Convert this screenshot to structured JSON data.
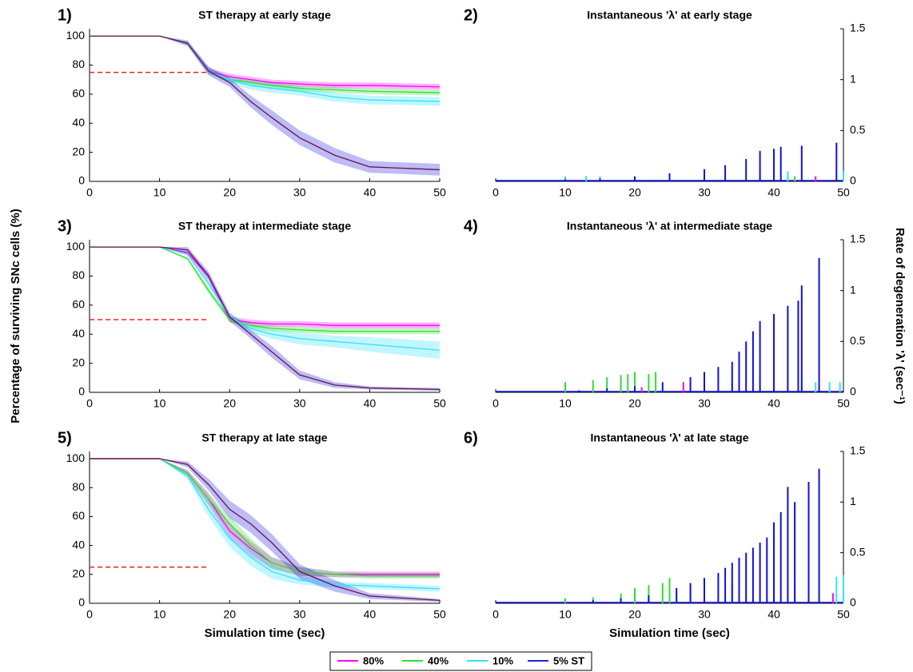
{
  "chart_data": [
    {
      "type": "band-line",
      "label": "1)",
      "title": "ST therapy at early stage",
      "reference": 75,
      "reference_color": "#ee2222",
      "x": [
        0,
        10,
        14,
        17,
        20,
        23,
        26,
        30,
        35,
        40,
        50
      ],
      "xlim": [
        0,
        50
      ],
      "xticks": [
        0,
        10,
        20,
        30,
        40,
        50
      ],
      "ylim": [
        0,
        105
      ],
      "yticks": [
        0,
        20,
        40,
        60,
        80,
        100
      ],
      "series": [
        {
          "name": "80%",
          "color": "#ff00ff",
          "values": [
            100,
            100,
            95,
            76,
            72,
            70,
            68,
            67,
            66,
            66,
            65
          ],
          "error": [
            0,
            0,
            1,
            2,
            2,
            2,
            2,
            2,
            2,
            2,
            2
          ]
        },
        {
          "name": "40%",
          "color": "#33dd33",
          "values": [
            100,
            100,
            95,
            76,
            70,
            68,
            66,
            64,
            63,
            62,
            61
          ],
          "error": [
            0,
            0,
            1,
            2,
            2,
            2,
            2,
            2,
            2,
            2,
            2
          ]
        },
        {
          "name": "10%",
          "color": "#33e0ff",
          "values": [
            100,
            100,
            95,
            76,
            70,
            66,
            64,
            62,
            58,
            56,
            55
          ],
          "error": [
            0,
            0,
            1,
            2,
            2,
            3,
            3,
            3,
            3,
            3,
            3
          ]
        },
        {
          "name": "5% ST",
          "color": "#2020e0",
          "line_color": "#70104a",
          "values": [
            100,
            100,
            95,
            76,
            68,
            55,
            44,
            30,
            18,
            10,
            8
          ],
          "error": [
            0,
            0,
            2,
            3,
            3,
            4,
            5,
            5,
            5,
            4,
            4
          ]
        }
      ]
    },
    {
      "type": "spike",
      "label": "2)",
      "title": "Instantaneous 'λ' at early stage",
      "axis_side": "right",
      "xlim": [
        0,
        50
      ],
      "xticks": [
        0,
        10,
        20,
        30,
        40,
        50
      ],
      "ylim": [
        0,
        1.5
      ],
      "yticks": [
        0,
        0.5,
        1,
        1.5
      ],
      "series": [
        {
          "name": "80%",
          "color": "#ff00ff",
          "x": [
            13,
            40,
            46
          ],
          "values": [
            0.05,
            0.05,
            0.05
          ]
        },
        {
          "name": "40%",
          "color": "#33dd33",
          "x": [
            40,
            42,
            43
          ],
          "values": [
            0.05,
            0.06,
            0.05
          ]
        },
        {
          "name": "10%",
          "color": "#33e0ff",
          "x": [
            10,
            13,
            15,
            38,
            42,
            50
          ],
          "values": [
            0.05,
            0.05,
            0.05,
            0.1,
            0.1,
            0.1
          ]
        },
        {
          "name": "5% ST",
          "color": "#1010e0",
          "x": [
            10,
            15,
            20,
            25,
            30,
            33,
            36,
            38,
            40,
            41,
            44,
            49
          ],
          "values": [
            0.02,
            0.03,
            0.05,
            0.08,
            0.12,
            0.16,
            0.22,
            0.3,
            0.32,
            0.34,
            0.35,
            0.38
          ]
        }
      ]
    },
    {
      "type": "band-line",
      "label": "3)",
      "title": "ST therapy at intermediate stage",
      "ylabel": "Percentage of surviving SNc cells (%)",
      "reference": 50,
      "reference_color": "#ee2222",
      "x": [
        0,
        10,
        14,
        17,
        20,
        23,
        26,
        30,
        35,
        40,
        50
      ],
      "xlim": [
        0,
        50
      ],
      "xticks": [
        0,
        10,
        20,
        30,
        40,
        50
      ],
      "ylim": [
        0,
        105
      ],
      "yticks": [
        0,
        20,
        40,
        60,
        80,
        100
      ],
      "series": [
        {
          "name": "80%",
          "color": "#ff00ff",
          "values": [
            100,
            100,
            96,
            80,
            50,
            48,
            47,
            47,
            46,
            46,
            46
          ],
          "error": [
            0,
            0,
            1,
            2,
            2,
            2,
            2,
            2,
            2,
            2,
            2
          ]
        },
        {
          "name": "40%",
          "color": "#33dd33",
          "values": [
            100,
            100,
            92,
            70,
            50,
            46,
            44,
            43,
            42,
            42,
            42
          ],
          "error": [
            0,
            0,
            1,
            2,
            2,
            2,
            2,
            2,
            2,
            2,
            2
          ]
        },
        {
          "name": "10%",
          "color": "#33e0ff",
          "values": [
            100,
            100,
            95,
            75,
            52,
            44,
            40,
            37,
            35,
            33,
            29
          ],
          "error": [
            0,
            0,
            1,
            2,
            2,
            3,
            3,
            4,
            4,
            5,
            6
          ]
        },
        {
          "name": "5% ST",
          "color": "#2020e0",
          "line_color": "#70104a",
          "values": [
            100,
            100,
            98,
            80,
            52,
            40,
            28,
            12,
            5,
            3,
            2
          ],
          "error": [
            0,
            0,
            2,
            3,
            3,
            3,
            4,
            3,
            2,
            1,
            1
          ]
        }
      ]
    },
    {
      "type": "spike",
      "label": "4)",
      "title": "Instantaneous 'λ' at intermediate stage",
      "ylabel": "Rate of degeneration 'λ' (sec⁻¹)",
      "axis_side": "right",
      "xlim": [
        0,
        50
      ],
      "xticks": [
        0,
        10,
        20,
        30,
        40,
        50
      ],
      "ylim": [
        0,
        1.5
      ],
      "yticks": [
        0,
        0.5,
        1,
        1.5
      ],
      "series": [
        {
          "name": "80%",
          "color": "#ff00ff",
          "x": [
            20,
            21,
            27
          ],
          "values": [
            0.05,
            0.05,
            0.1
          ]
        },
        {
          "name": "40%",
          "color": "#33dd33",
          "x": [
            10,
            14,
            16,
            18,
            19,
            20,
            22,
            23
          ],
          "values": [
            0.1,
            0.12,
            0.15,
            0.17,
            0.18,
            0.2,
            0.18,
            0.2
          ]
        },
        {
          "name": "10%",
          "color": "#33e0ff",
          "x": [
            34,
            38,
            44,
            46,
            48,
            49.5
          ],
          "values": [
            0.1,
            0.1,
            0.1,
            0.1,
            0.1,
            0.1
          ]
        },
        {
          "name": "5% ST",
          "color": "#1010e0",
          "x": [
            12,
            16,
            20,
            24,
            28,
            30,
            32,
            34,
            35,
            36,
            37,
            38,
            40,
            42,
            43.5,
            44,
            46.5
          ],
          "values": [
            0.02,
            0.04,
            0.06,
            0.1,
            0.15,
            0.2,
            0.25,
            0.3,
            0.4,
            0.5,
            0.6,
            0.7,
            0.77,
            0.85,
            0.9,
            1.05,
            1.32
          ]
        }
      ]
    },
    {
      "type": "band-line",
      "label": "5)",
      "title": "ST therapy at late stage",
      "xlabel": "Simulation time (sec)",
      "reference": 25,
      "reference_color": "#ee2222",
      "x": [
        0,
        10,
        14,
        17,
        20,
        23,
        26,
        30,
        35,
        40,
        50
      ],
      "xlim": [
        0,
        50
      ],
      "xticks": [
        0,
        10,
        20,
        30,
        40,
        50
      ],
      "ylim": [
        0,
        105
      ],
      "yticks": [
        0,
        20,
        40,
        60,
        80,
        100
      ],
      "series": [
        {
          "name": "80%",
          "color": "#ff00ff",
          "values": [
            100,
            100,
            90,
            72,
            50,
            38,
            28,
            22,
            20,
            20,
            20
          ],
          "error": [
            0,
            0,
            2,
            4,
            5,
            5,
            4,
            3,
            2,
            2,
            2
          ]
        },
        {
          "name": "40%",
          "color": "#33dd33",
          "values": [
            100,
            100,
            90,
            72,
            55,
            40,
            28,
            22,
            20,
            19,
            19
          ],
          "error": [
            0,
            0,
            2,
            4,
            5,
            5,
            4,
            3,
            2,
            2,
            2
          ]
        },
        {
          "name": "10%",
          "color": "#33e0ff",
          "values": [
            100,
            100,
            88,
            65,
            45,
            32,
            22,
            16,
            13,
            12,
            10
          ],
          "error": [
            0,
            0,
            2,
            5,
            6,
            6,
            5,
            3,
            2,
            2,
            2
          ]
        },
        {
          "name": "5% ST",
          "color": "#2020e0",
          "line_color": "#70104a",
          "values": [
            100,
            100,
            96,
            82,
            65,
            55,
            42,
            22,
            12,
            5,
            2
          ],
          "error": [
            0,
            0,
            2,
            4,
            6,
            6,
            6,
            5,
            4,
            2,
            1
          ]
        }
      ]
    },
    {
      "type": "spike",
      "label": "6)",
      "title": "Instantaneous 'λ' at late stage",
      "xlabel": "Simulation time (sec)",
      "axis_side": "right",
      "xlim": [
        0,
        50
      ],
      "xticks": [
        0,
        10,
        20,
        30,
        40,
        50
      ],
      "ylim": [
        0,
        1.5
      ],
      "yticks": [
        0,
        0.5,
        1,
        1.5
      ],
      "series": [
        {
          "name": "80%",
          "color": "#ff00ff",
          "x": [
            48.5
          ],
          "values": [
            0.1
          ]
        },
        {
          "name": "40%",
          "color": "#33dd33",
          "x": [
            10,
            14,
            18,
            20,
            22,
            24,
            25
          ],
          "values": [
            0.05,
            0.06,
            0.1,
            0.15,
            0.18,
            0.2,
            0.25
          ]
        },
        {
          "name": "10%",
          "color": "#33e0ff",
          "x": [
            26,
            28,
            30,
            34,
            40,
            43,
            49,
            50
          ],
          "values": [
            0.12,
            0.15,
            0.2,
            0.2,
            0.25,
            0.25,
            0.26,
            0.28
          ]
        },
        {
          "name": "5% ST",
          "color": "#1010e0",
          "x": [
            14,
            18,
            22,
            26,
            28,
            30,
            32,
            33,
            34,
            35,
            36,
            37,
            38,
            39,
            40,
            41,
            42,
            43,
            45,
            46.5
          ],
          "values": [
            0.03,
            0.05,
            0.08,
            0.15,
            0.2,
            0.25,
            0.3,
            0.35,
            0.4,
            0.45,
            0.5,
            0.55,
            0.6,
            0.65,
            0.8,
            0.9,
            1.15,
            1.0,
            1.2,
            1.33
          ]
        }
      ]
    }
  ]
}
